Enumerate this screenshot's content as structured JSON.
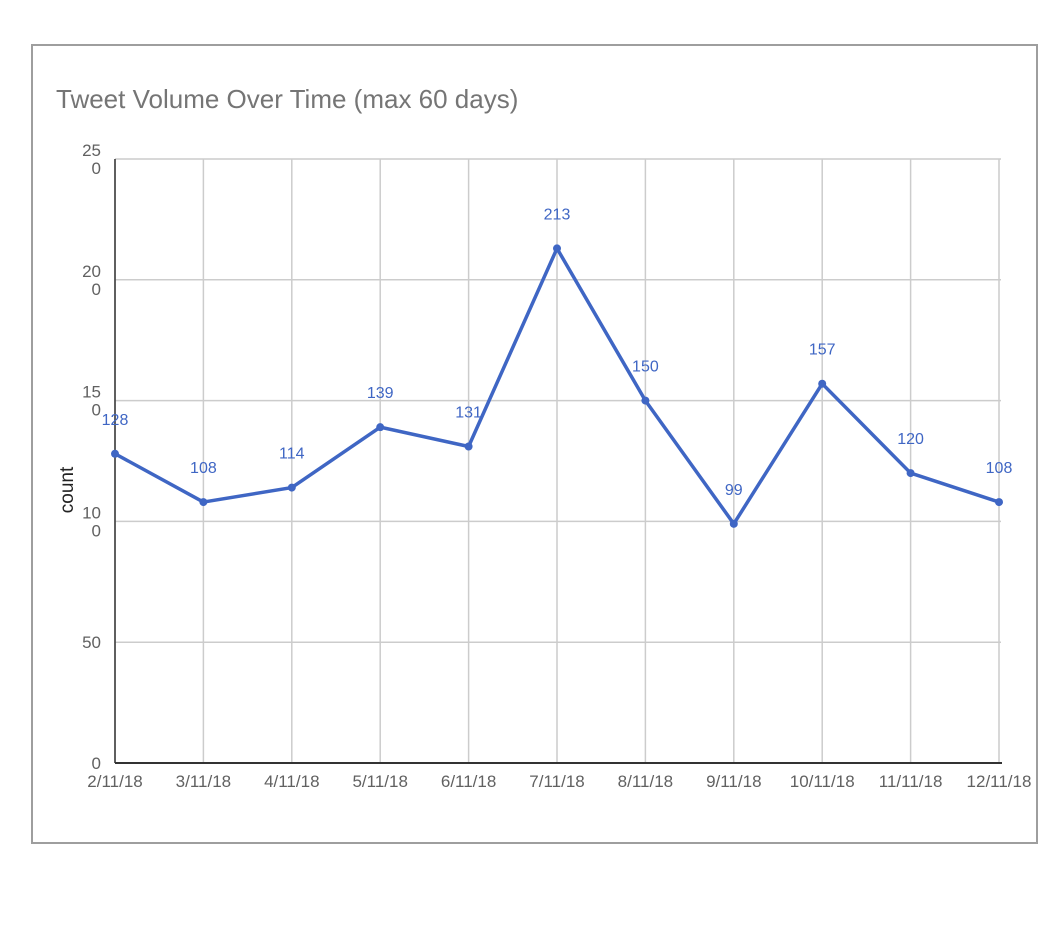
{
  "chart_data": {
    "type": "line",
    "title": "Tweet Volume Over Time (max 60 days)",
    "xlabel": "",
    "ylabel": "count",
    "categories": [
      "2/11/18",
      "3/11/18",
      "4/11/18",
      "5/11/18",
      "6/11/18",
      "7/11/18",
      "8/11/18",
      "9/11/18",
      "10/11/18",
      "11/11/18",
      "12/11/18"
    ],
    "series": [
      {
        "values": [
          128,
          108,
          114,
          139,
          131,
          213,
          150,
          99,
          157,
          120,
          108
        ]
      }
    ],
    "data_labels": [
      "128",
      "108",
      "114",
      "139",
      "131",
      "213",
      "150",
      "99",
      "157",
      "120",
      "108"
    ],
    "y_ticks": [
      "0",
      "50",
      "100",
      "150",
      "200",
      "250"
    ],
    "ylim": [
      0,
      250
    ],
    "grid": true,
    "legend": "none",
    "colors": {
      "line": "#3f66c4",
      "label": "#3f66c4",
      "grid": "#cccccc",
      "axis": "#333333",
      "card_border": "#9e9e9e",
      "title": "#757575"
    }
  }
}
